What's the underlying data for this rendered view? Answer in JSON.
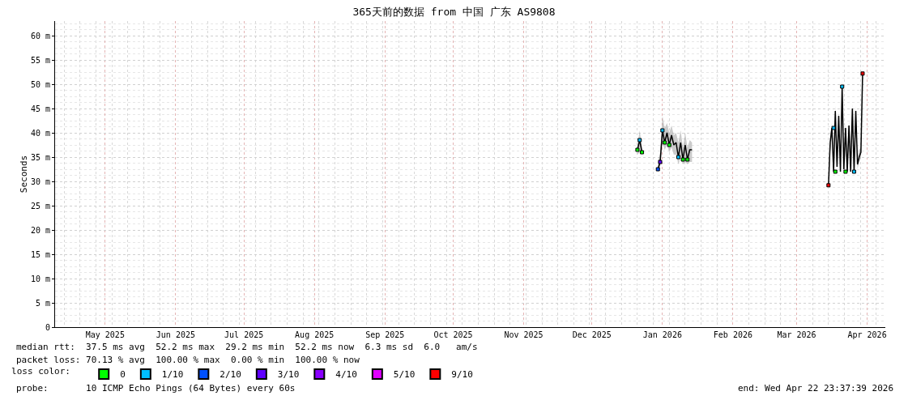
{
  "chart_data": {
    "type": "line",
    "title": "365天前的数据 from 中国 广东 AS9808",
    "ylabel": "Seconds",
    "xlim": [
      "2025-04-22T23:37",
      "2026-04-22T23:37"
    ],
    "xticks": [
      {
        "value": "2025-05-15",
        "label": "May 2025"
      },
      {
        "value": "2025-06-15",
        "label": "Jun 2025"
      },
      {
        "value": "2025-07-15",
        "label": "Jul 2025"
      },
      {
        "value": "2025-08-15",
        "label": "Aug 2025"
      },
      {
        "value": "2025-09-15",
        "label": "Sep 2025"
      },
      {
        "value": "2025-10-15",
        "label": "Oct 2025"
      },
      {
        "value": "2025-11-15",
        "label": "Nov 2025"
      },
      {
        "value": "2025-12-15",
        "label": "Dec 2025"
      },
      {
        "value": "2026-01-15",
        "label": "Jan 2026"
      },
      {
        "value": "2026-02-15",
        "label": "Feb 2026"
      },
      {
        "value": "2026-03-15",
        "label": "Mar 2026"
      },
      {
        "value": "2026-04-15",
        "label": "Apr 2026"
      }
    ],
    "ylim": [
      0,
      63
    ],
    "yticks": [
      0,
      {
        "value": 5,
        "label": "5 m"
      },
      {
        "value": 10,
        "label": "10 m"
      },
      {
        "value": 15,
        "label": "15 m"
      },
      {
        "value": 20,
        "label": "20 m"
      },
      {
        "value": 25,
        "label": "25 m"
      },
      {
        "value": 30,
        "label": "30 m"
      },
      {
        "value": 35,
        "label": "35 m"
      },
      {
        "value": 40,
        "label": "40 m"
      },
      {
        "value": 45,
        "label": "45 m"
      },
      {
        "value": 50,
        "label": "50 m"
      },
      {
        "value": 55,
        "label": "55 m"
      },
      {
        "value": 60,
        "label": "60 m"
      }
    ],
    "grid": true,
    "legend": "bottom",
    "legend_title": "loss color:",
    "series": [
      {
        "color": "#000000",
        "x": [
          "2026-01-04",
          "2026-01-05",
          "2026-01-06",
          "2026-01-07",
          "2026-01-13",
          "2026-01-14",
          "2026-01-15",
          "2026-01-16",
          "2026-01-17",
          "2026-01-18",
          "2026-01-19",
          "2026-01-20",
          "2026-01-21",
          "2026-01-22",
          "2026-01-23",
          "2026-01-24",
          "2026-01-25",
          "2026-01-26",
          "2026-01-27",
          "2026-01-28",
          "2026-01-29",
          "2026-03-29T00:00",
          "2026-03-29T18:00",
          "2026-03-30T12:00",
          "2026-03-31T06:00",
          "2026-04-01T00:00",
          "2026-04-01T18:00",
          "2026-04-02T12:00",
          "2026-04-03T06:00",
          "2026-04-04T00:00",
          "2026-04-04T18:00",
          "2026-04-05T12:00",
          "2026-04-06T06:00",
          "2026-04-07T00:00",
          "2026-04-07T18:00",
          "2026-04-08T12:00",
          "2026-04-09T06:00",
          "2026-04-10T00:00",
          "2026-04-10T18:00",
          "2026-04-11T12:00",
          "2026-04-12T06:00",
          "2026-04-13T00:00"
        ],
        "values": [
          36.5,
          38.5,
          36,
          null,
          32.5,
          34,
          40.5,
          38,
          40,
          37.5,
          39.5,
          37.5,
          38,
          35,
          38,
          34.5,
          37.5,
          34.5,
          36.5,
          36.5,
          null,
          29.2,
          38,
          41,
          32,
          44.5,
          33,
          43.5,
          32,
          49.5,
          32.5,
          41,
          32,
          41.5,
          32,
          45,
          32,
          44.5,
          33.5,
          35,
          36,
          52.2
        ],
        "lower": [
          35.5,
          36,
          35.5,
          null,
          32,
          33,
          38,
          36.5,
          37.5,
          36,
          37,
          35.5,
          35.5,
          33.5,
          35,
          33.5,
          34,
          33.5,
          34,
          34,
          null,
          29,
          36,
          39,
          31.5,
          42,
          32,
          42,
          31.5,
          47,
          31.5,
          39,
          31.5,
          39,
          31.5,
          42.5,
          31.5,
          42,
          32.5,
          34,
          35,
          51
        ],
        "upper": [
          37.5,
          40.5,
          37,
          null,
          34,
          36,
          43.5,
          41,
          42,
          40,
          41.5,
          39.5,
          40,
          38,
          40.5,
          37,
          40,
          37,
          38.5,
          38,
          null,
          30,
          39.5,
          42,
          33.5,
          45.5,
          34.5,
          44.5,
          33.5,
          51,
          34,
          42,
          33.5,
          42.5,
          33.5,
          46,
          33.5,
          45.5,
          35,
          36.5,
          37,
          53.5
        ]
      },
      {
        "name": "0",
        "color": "#00ff00",
        "type": "scatter",
        "x": [
          "2026-01-04",
          "2026-01-06",
          "2026-01-16",
          "2026-01-18",
          "2026-01-24",
          "2026-01-26",
          "2026-04-01T00:00",
          "2026-04-05T12:00"
        ],
        "values": [
          36.5,
          36,
          38,
          37.5,
          34.5,
          34.5,
          32,
          32
        ]
      },
      {
        "name": "1/10",
        "color": "#00bfff",
        "type": "scatter",
        "x": [
          "2026-01-05",
          "2026-01-15",
          "2026-01-22",
          "2026-03-31T06:00",
          "2026-04-04T00:00",
          "2026-04-09T06:00"
        ],
        "values": [
          38.5,
          40.5,
          35,
          41,
          49.5,
          32
        ]
      },
      {
        "name": "2/10",
        "color": "#0050ff",
        "type": "scatter",
        "x": [
          "2026-01-13"
        ],
        "values": [
          32.5
        ]
      },
      {
        "name": "3/10",
        "color": "#6000ff",
        "type": "scatter",
        "x": [
          "2026-01-14"
        ],
        "values": [
          34
        ]
      },
      {
        "name": "4/10",
        "color": "#8a00ff",
        "type": "scatter",
        "values": [
          null
        ]
      },
      {
        "name": "5/10",
        "color": "#e000ff",
        "type": "scatter",
        "values": [
          null
        ]
      },
      {
        "name": "9/10",
        "color": "#ff0000",
        "type": "scatter",
        "x": [
          "2026-03-29T00:00",
          "2026-04-13T00:00"
        ],
        "values": [
          29.2,
          52.2
        ]
      }
    ],
    "annotations": [
      "median rtt:  37.5 ms avg  52.2 ms max  29.2 ms min  52.2 ms now  6.3 ms sd  6.0   am/s",
      "packet loss: 70.13 % avg  100.00 % max  0.00 % min  100.00 % now",
      "probe:       10 ICMP Echo Pings (64 Bytes) every 60s",
      "end: Wed Apr 22 23:37:39 2026"
    ]
  }
}
